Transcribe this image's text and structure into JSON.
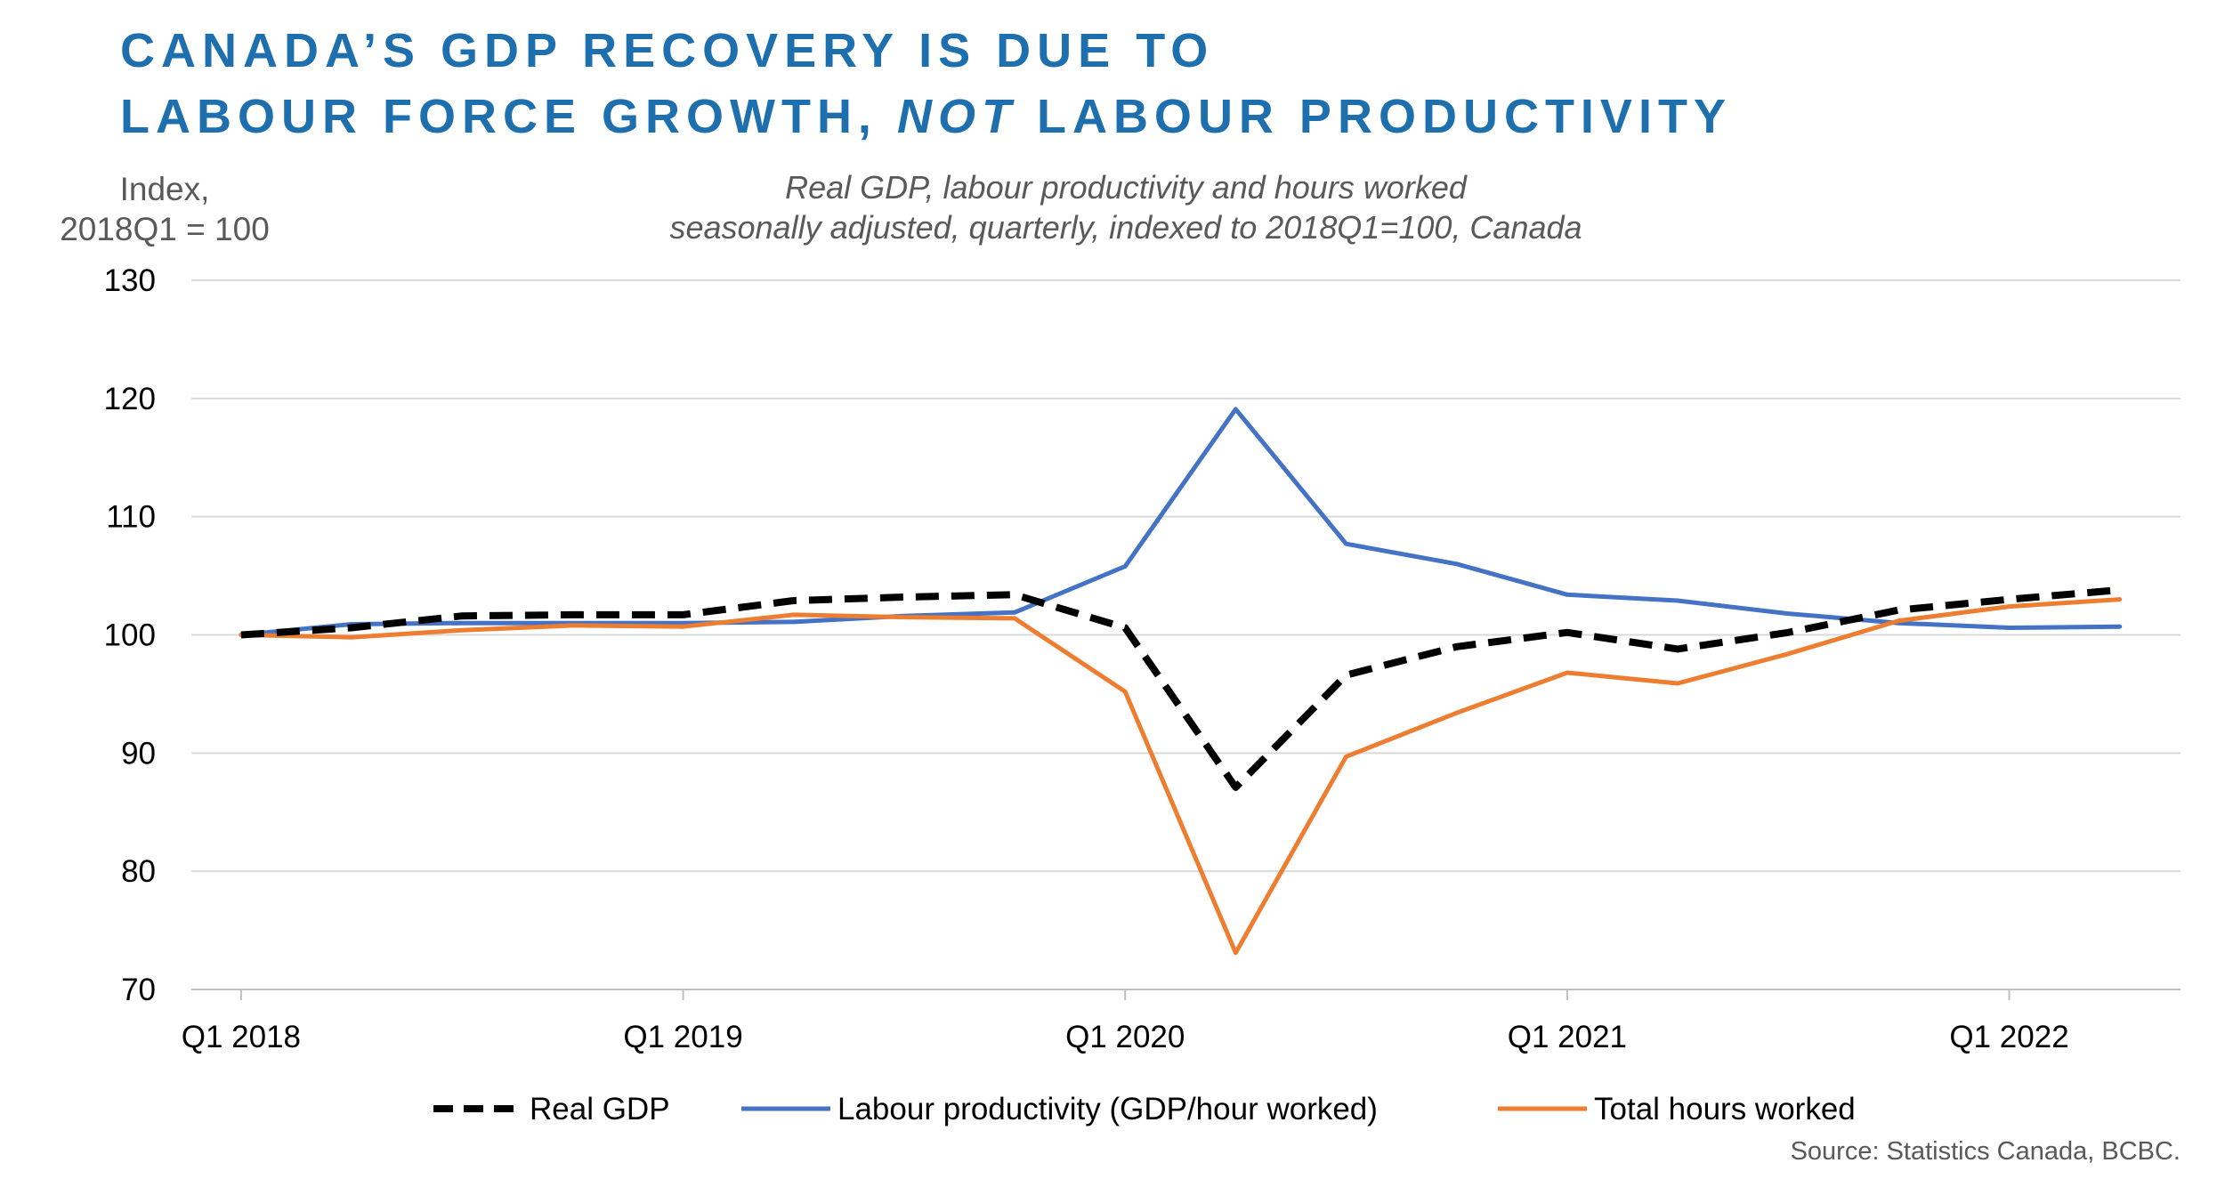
{
  "title": {
    "line1": "CANADA’S GDP RECOVERY IS DUE TO",
    "line2a": "LABOUR FORCE GROWTH, ",
    "line2b": "NOT",
    "line2c": " LABOUR PRODUCTIVITY"
  },
  "source": "Source: Statistics Canada, BCBC.",
  "colors": {
    "title": "#1d6fae",
    "real_gdp": "#000000",
    "labour_productivity": "#4472c4",
    "total_hours": "#ed7d31",
    "grid": "#d9d9d9"
  },
  "chart_data": {
    "type": "line",
    "title": "Real GDP, labour productivity and hours worked",
    "subtitle": "seasonally adjusted, quarterly, indexed to 2018Q1=100, Canada",
    "ylabel_line1": "Index,",
    "ylabel_line2": "2018Q1 = 100",
    "xlabel": "",
    "ylim": [
      70,
      130
    ],
    "yticks": [
      70,
      80,
      90,
      100,
      110,
      120,
      130
    ],
    "xlim": [
      -0.45,
      17.55
    ],
    "x_tick_positions": [
      0,
      4,
      8,
      12,
      16
    ],
    "x_tick_labels": [
      "Q1 2018",
      "Q1 2019",
      "Q1 2020",
      "Q1 2021",
      "Q1 2022"
    ],
    "legend_position": "bottom",
    "grid": true,
    "quarters": [
      "2018Q1",
      "2018Q2",
      "2018Q3",
      "2018Q4",
      "2019Q1",
      "2019Q2",
      "2019Q3",
      "2019Q4",
      "2020Q1",
      "2020Q2",
      "2020Q3",
      "2020Q4",
      "2021Q1",
      "2021Q2",
      "2021Q3",
      "2021Q4",
      "2022Q1",
      "2022Q2"
    ],
    "series": [
      {
        "name": "Real GDP",
        "key": "real_gdp",
        "style": "dashed",
        "values": [
          100.0,
          100.6,
          101.6,
          101.7,
          101.7,
          102.9,
          103.2,
          103.4,
          100.6,
          87.1,
          96.6,
          99.0,
          100.2,
          98.8,
          100.2,
          102.1,
          103.0,
          103.8
        ]
      },
      {
        "name": "Labour productivity (GDP/hour worked)",
        "key": "labour_productivity",
        "style": "solid",
        "values": [
          100.0,
          100.9,
          101.0,
          101.0,
          101.0,
          101.1,
          101.6,
          101.9,
          105.8,
          119.1,
          107.7,
          106.0,
          103.4,
          102.9,
          101.8,
          101.0,
          100.6,
          100.7
        ]
      },
      {
        "name": "Total hours worked",
        "key": "total_hours",
        "style": "solid",
        "values": [
          100.0,
          99.8,
          100.4,
          100.8,
          100.7,
          101.7,
          101.5,
          101.4,
          95.2,
          73.1,
          89.7,
          93.4,
          96.8,
          95.9,
          98.4,
          101.2,
          102.4,
          103.0
        ]
      }
    ]
  }
}
